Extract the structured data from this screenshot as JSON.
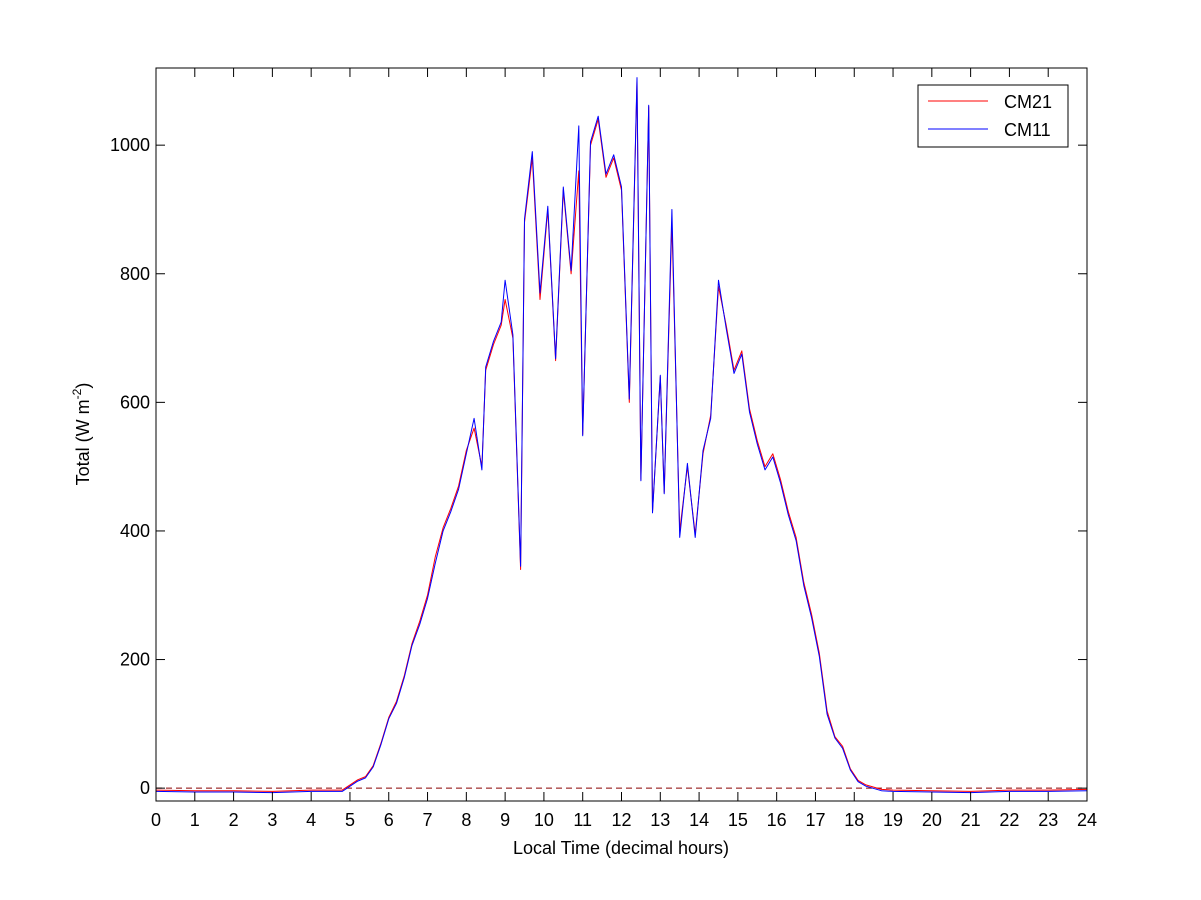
{
  "chart_data": {
    "type": "line",
    "title": "",
    "xlabel": "Local Time (decimal hours)",
    "ylabel_main": "Total (W m",
    "ylabel_sup": "-2",
    "ylabel_close": ")",
    "xlim": [
      0,
      24
    ],
    "ylim": [
      -20,
      1120
    ],
    "xticks": [
      0,
      1,
      2,
      3,
      4,
      5,
      6,
      7,
      8,
      9,
      10,
      11,
      12,
      13,
      14,
      15,
      16,
      17,
      18,
      19,
      20,
      21,
      22,
      23,
      24
    ],
    "yticks": [
      0,
      200,
      400,
      600,
      800,
      1000
    ],
    "grid": false,
    "legend_position": "top-right",
    "reference_line": {
      "y": 0,
      "style": "dashed",
      "color": "#8b0000"
    },
    "series": [
      {
        "name": "CM21",
        "color": "#ff0000",
        "points": [
          [
            0,
            -3
          ],
          [
            1,
            -4
          ],
          [
            2,
            -4
          ],
          [
            3,
            -5
          ],
          [
            4,
            -3
          ],
          [
            4.8,
            -3
          ],
          [
            5.0,
            5
          ],
          [
            5.2,
            13
          ],
          [
            5.4,
            18
          ],
          [
            5.6,
            35
          ],
          [
            5.8,
            70
          ],
          [
            6.0,
            110
          ],
          [
            6.2,
            135
          ],
          [
            6.4,
            175
          ],
          [
            6.6,
            225
          ],
          [
            6.8,
            260
          ],
          [
            7.0,
            300
          ],
          [
            7.2,
            360
          ],
          [
            7.4,
            405
          ],
          [
            7.6,
            435
          ],
          [
            7.8,
            470
          ],
          [
            8.0,
            525
          ],
          [
            8.2,
            560
          ],
          [
            8.4,
            500
          ],
          [
            8.5,
            650
          ],
          [
            8.7,
            690
          ],
          [
            8.9,
            720
          ],
          [
            9.0,
            760
          ],
          [
            9.2,
            700
          ],
          [
            9.4,
            340
          ],
          [
            9.5,
            880
          ],
          [
            9.7,
            980
          ],
          [
            9.9,
            760
          ],
          [
            10.1,
            900
          ],
          [
            10.3,
            665
          ],
          [
            10.5,
            930
          ],
          [
            10.7,
            800
          ],
          [
            10.9,
            960
          ],
          [
            11.0,
            550
          ],
          [
            11.2,
            1000
          ],
          [
            11.4,
            1040
          ],
          [
            11.6,
            950
          ],
          [
            11.8,
            980
          ],
          [
            12.0,
            930
          ],
          [
            12.2,
            600
          ],
          [
            12.4,
            1100
          ],
          [
            12.5,
            480
          ],
          [
            12.7,
            1060
          ],
          [
            12.8,
            430
          ],
          [
            13.0,
            640
          ],
          [
            13.1,
            460
          ],
          [
            13.3,
            880
          ],
          [
            13.5,
            400
          ],
          [
            13.7,
            500
          ],
          [
            13.9,
            395
          ],
          [
            14.1,
            520
          ],
          [
            14.3,
            580
          ],
          [
            14.5,
            780
          ],
          [
            14.7,
            720
          ],
          [
            14.9,
            650
          ],
          [
            15.1,
            680
          ],
          [
            15.3,
            590
          ],
          [
            15.5,
            540
          ],
          [
            15.7,
            500
          ],
          [
            15.9,
            520
          ],
          [
            16.1,
            480
          ],
          [
            16.3,
            430
          ],
          [
            16.5,
            390
          ],
          [
            16.7,
            320
          ],
          [
            16.9,
            270
          ],
          [
            17.1,
            210
          ],
          [
            17.3,
            120
          ],
          [
            17.5,
            80
          ],
          [
            17.7,
            65
          ],
          [
            17.9,
            30
          ],
          [
            18.1,
            12
          ],
          [
            18.3,
            5
          ],
          [
            18.7,
            -2
          ],
          [
            19,
            -3
          ],
          [
            20,
            -4
          ],
          [
            21,
            -5
          ],
          [
            22,
            -3
          ],
          [
            23,
            -3
          ],
          [
            24,
            -2
          ]
        ]
      },
      {
        "name": "CM11",
        "color": "#0000ff",
        "points": [
          [
            0,
            -5
          ],
          [
            1,
            -6
          ],
          [
            2,
            -6
          ],
          [
            3,
            -7
          ],
          [
            4,
            -5
          ],
          [
            4.8,
            -5
          ],
          [
            5.0,
            3
          ],
          [
            5.2,
            11
          ],
          [
            5.4,
            16
          ],
          [
            5.6,
            33
          ],
          [
            5.8,
            68
          ],
          [
            6.0,
            108
          ],
          [
            6.2,
            132
          ],
          [
            6.4,
            172
          ],
          [
            6.6,
            222
          ],
          [
            6.8,
            255
          ],
          [
            7.0,
            295
          ],
          [
            7.2,
            350
          ],
          [
            7.4,
            400
          ],
          [
            7.6,
            430
          ],
          [
            7.8,
            465
          ],
          [
            8.0,
            520
          ],
          [
            8.2,
            575
          ],
          [
            8.4,
            495
          ],
          [
            8.5,
            655
          ],
          [
            8.7,
            695
          ],
          [
            8.9,
            725
          ],
          [
            9.0,
            790
          ],
          [
            9.2,
            705
          ],
          [
            9.4,
            345
          ],
          [
            9.5,
            885
          ],
          [
            9.7,
            990
          ],
          [
            9.9,
            770
          ],
          [
            10.1,
            905
          ],
          [
            10.3,
            668
          ],
          [
            10.5,
            935
          ],
          [
            10.7,
            805
          ],
          [
            10.9,
            1030
          ],
          [
            11.0,
            548
          ],
          [
            11.2,
            1005
          ],
          [
            11.4,
            1045
          ],
          [
            11.6,
            955
          ],
          [
            11.8,
            985
          ],
          [
            12.0,
            935
          ],
          [
            12.2,
            605
          ],
          [
            12.4,
            1105
          ],
          [
            12.5,
            478
          ],
          [
            12.7,
            1062
          ],
          [
            12.8,
            428
          ],
          [
            13.0,
            642
          ],
          [
            13.1,
            458
          ],
          [
            13.3,
            900
          ],
          [
            13.5,
            390
          ],
          [
            13.7,
            505
          ],
          [
            13.9,
            390
          ],
          [
            14.1,
            525
          ],
          [
            14.3,
            575
          ],
          [
            14.5,
            790
          ],
          [
            14.7,
            715
          ],
          [
            14.9,
            645
          ],
          [
            15.1,
            675
          ],
          [
            15.3,
            585
          ],
          [
            15.5,
            535
          ],
          [
            15.7,
            495
          ],
          [
            15.9,
            515
          ],
          [
            16.1,
            475
          ],
          [
            16.3,
            425
          ],
          [
            16.5,
            385
          ],
          [
            16.7,
            315
          ],
          [
            16.9,
            265
          ],
          [
            17.1,
            205
          ],
          [
            17.3,
            115
          ],
          [
            17.5,
            78
          ],
          [
            17.7,
            62
          ],
          [
            17.9,
            28
          ],
          [
            18.1,
            10
          ],
          [
            18.3,
            3
          ],
          [
            18.7,
            -4
          ],
          [
            19,
            -5
          ],
          [
            20,
            -6
          ],
          [
            21,
            -7
          ],
          [
            22,
            -5
          ],
          [
            23,
            -5
          ],
          [
            24,
            -4
          ]
        ]
      }
    ]
  }
}
